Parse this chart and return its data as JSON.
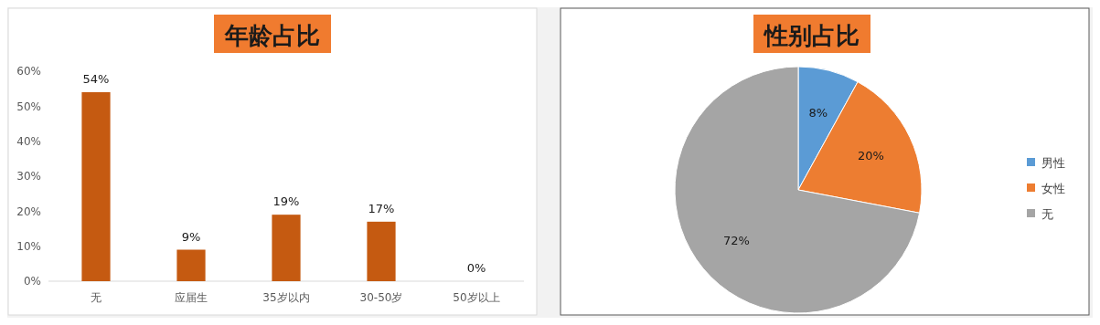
{
  "chart_data": [
    {
      "type": "bar",
      "title": "年龄占比",
      "categories": [
        "无",
        "应届生",
        "35岁以内",
        "30-50岁",
        "50岁以上"
      ],
      "values": [
        54,
        9,
        19,
        17,
        0
      ],
      "value_labels": [
        "54%",
        "9%",
        "19%",
        "17%",
        "0%"
      ],
      "color": "#c55a11",
      "ylim": [
        0,
        60
      ],
      "yticks": [
        {
          "value": 0,
          "label": "0%"
        },
        {
          "value": 10,
          "label": "10%"
        },
        {
          "value": 20,
          "label": "20%"
        },
        {
          "value": 30,
          "label": "30%"
        },
        {
          "value": 40,
          "label": "40%"
        },
        {
          "value": 50,
          "label": "50%"
        },
        {
          "value": 60,
          "label": "60%"
        }
      ],
      "grid": false
    },
    {
      "type": "pie",
      "title": "性别占比",
      "categories": [
        "男性",
        "女性",
        "无"
      ],
      "values": [
        8,
        20,
        72
      ],
      "value_labels": [
        "8%",
        "20%",
        "72%"
      ],
      "colors": [
        "#5b9bd5",
        "#ed7d31",
        "#a5a5a5"
      ],
      "legend": "right"
    }
  ]
}
